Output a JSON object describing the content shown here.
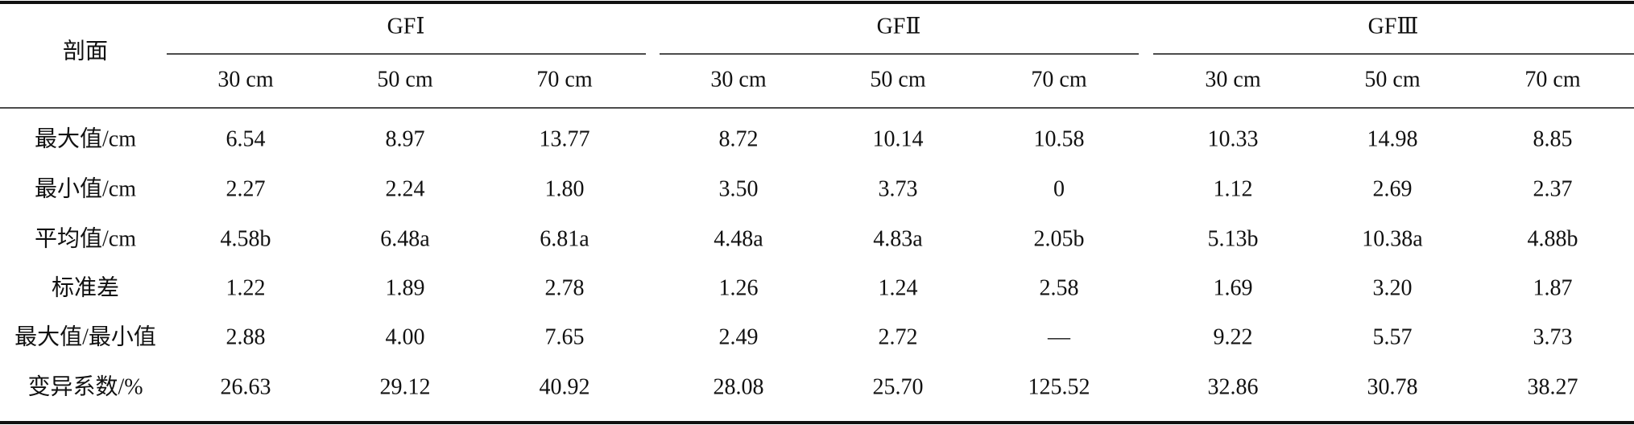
{
  "table": {
    "corner": "剖面",
    "groups": [
      "GFⅠ",
      "GFⅡ",
      "GFⅢ"
    ],
    "columns": [
      "30 cm",
      "50 cm",
      "70 cm",
      "30 cm",
      "50 cm",
      "70 cm",
      "30 cm",
      "50 cm",
      "70 cm"
    ],
    "rows": [
      [
        "最大值/cm",
        "6.54",
        "8.97",
        "13.77",
        "8.72",
        "10.14",
        "10.58",
        "10.33",
        "14.98",
        "8.85"
      ],
      [
        "最小值/cm",
        "2.27",
        "2.24",
        "1.80",
        "3.50",
        "3.73",
        "0",
        "1.12",
        "2.69",
        "2.37"
      ],
      [
        "平均值/cm",
        "4.58b",
        "6.48a",
        "6.81a",
        "4.48a",
        "4.83a",
        "2.05b",
        "5.13b",
        "10.38a",
        "4.88b"
      ],
      [
        "标准差",
        "1.22",
        "1.89",
        "2.78",
        "1.26",
        "1.24",
        "2.58",
        "1.69",
        "3.20",
        "1.87"
      ],
      [
        "最大值/最小值",
        "2.88",
        "4.00",
        "7.65",
        "2.49",
        "2.72",
        "—",
        "9.22",
        "5.57",
        "3.73"
      ],
      [
        "变异系数/%",
        "26.63",
        "29.12",
        "40.92",
        "28.08",
        "25.70",
        "125.52",
        "32.86",
        "30.78",
        "38.27"
      ]
    ]
  }
}
